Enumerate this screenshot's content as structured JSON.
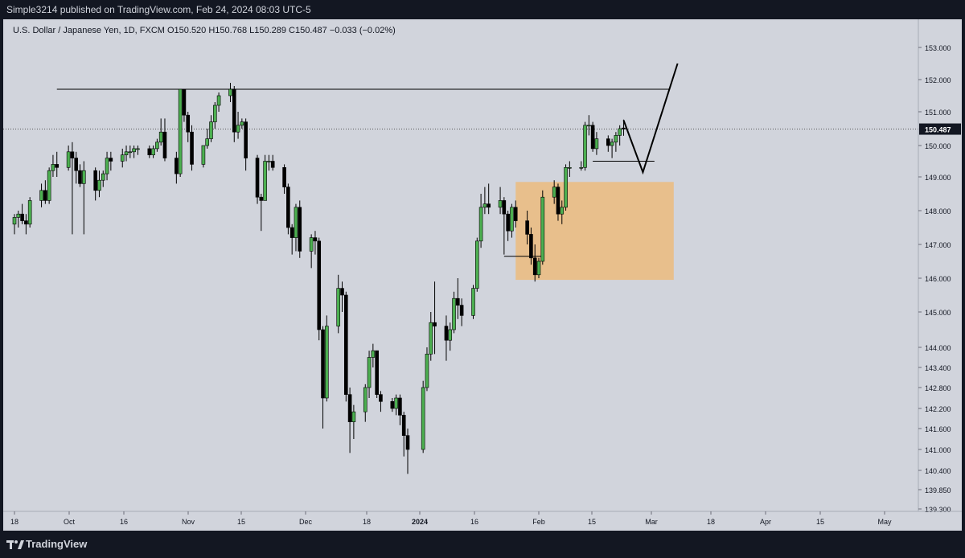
{
  "header": {
    "published_text": "Simple3214 published on TradingView.com, Feb 24, 2024 08:03 UTC-5"
  },
  "legend": {
    "text": "U.S. Dollar / Japanese Yen, 1D, FXCM  O150.520  H150.768  L150.289  C150.487  −0.033 (−0.02%)"
  },
  "footer": {
    "brand": "TradingView"
  },
  "colors": {
    "background": "#d1d4dc",
    "bull": "#4caf50",
    "bear": "#000000",
    "zone": "#e8bf8c",
    "frame": "#131722"
  },
  "chart_data": {
    "type": "candlestick",
    "symbol": "U.S. Dollar / Japanese Yen",
    "interval": "1D",
    "source": "FXCM",
    "ohlc": {
      "open": 150.52,
      "high": 150.768,
      "low": 150.289,
      "close": 150.487,
      "change": -0.033,
      "change_pct": -0.02
    },
    "last_price_label": "150.487",
    "y_ticks": [
      "153.000",
      "152.000",
      "151.000",
      "150.000",
      "149.000",
      "148.000",
      "147.000",
      "146.000",
      "145.000",
      "144.000",
      "143.400",
      "142.800",
      "142.200",
      "141.600",
      "141.000",
      "140.400",
      "139.850",
      "139.300"
    ],
    "x_ticks": [
      "18",
      "Oct",
      "16",
      "Nov",
      "15",
      "Dec",
      "18",
      "2024",
      "16",
      "Feb",
      "15",
      "Mar",
      "18",
      "Apr",
      "15",
      "May"
    ],
    "x_tick_bold": "2024",
    "y_scale": "log",
    "grid": false,
    "resistance_level": 151.7,
    "demand_zone": {
      "low": 145.95,
      "high": 148.85,
      "start_date": "2024-01-26",
      "end_date": "2024-03-07"
    },
    "swing_low_level": 146.65,
    "consolidation_low_level": 149.5,
    "projection_path": [
      {
        "date": "2024-02-23",
        "price": 150.75
      },
      {
        "date": "2024-02-28",
        "price": 149.15
      },
      {
        "date": "2024-03-08",
        "price": 152.5
      }
    ],
    "candles": [
      {
        "date": "2023-09-18",
        "o": 147.6,
        "h": 147.9,
        "l": 147.3,
        "c": 147.8
      },
      {
        "date": "2023-09-19",
        "o": 147.8,
        "h": 148.0,
        "l": 147.5,
        "c": 147.9
      },
      {
        "date": "2023-09-20",
        "o": 147.9,
        "h": 148.2,
        "l": 147.6,
        "c": 147.7
      },
      {
        "date": "2023-09-21",
        "o": 147.7,
        "h": 147.9,
        "l": 147.3,
        "c": 147.6
      },
      {
        "date": "2023-09-22",
        "o": 147.6,
        "h": 148.4,
        "l": 147.5,
        "c": 148.3
      },
      {
        "date": "2023-09-25",
        "o": 148.3,
        "h": 148.8,
        "l": 148.1,
        "c": 148.6
      },
      {
        "date": "2023-09-26",
        "o": 148.6,
        "h": 148.9,
        "l": 148.2,
        "c": 148.3
      },
      {
        "date": "2023-09-27",
        "o": 148.3,
        "h": 149.3,
        "l": 148.2,
        "c": 149.2
      },
      {
        "date": "2023-09-28",
        "o": 149.2,
        "h": 149.7,
        "l": 149.0,
        "c": 149.4
      },
      {
        "date": "2023-09-29",
        "o": 149.4,
        "h": 149.8,
        "l": 149.0,
        "c": 149.3
      },
      {
        "date": "2023-10-02",
        "o": 149.3,
        "h": 150.0,
        "l": 149.2,
        "c": 149.8
      },
      {
        "date": "2023-10-03",
        "o": 149.8,
        "h": 150.1,
        "l": 147.3,
        "c": 149.6
      },
      {
        "date": "2023-10-04",
        "o": 149.6,
        "h": 149.8,
        "l": 148.8,
        "c": 149.2
      },
      {
        "date": "2023-10-05",
        "o": 149.2,
        "h": 149.4,
        "l": 148.7,
        "c": 148.8
      },
      {
        "date": "2023-10-06",
        "o": 148.8,
        "h": 149.5,
        "l": 147.3,
        "c": 149.2
      },
      {
        "date": "2023-10-09",
        "o": 149.2,
        "h": 149.3,
        "l": 148.3,
        "c": 148.6
      },
      {
        "date": "2023-10-10",
        "o": 148.6,
        "h": 149.2,
        "l": 148.4,
        "c": 148.9
      },
      {
        "date": "2023-10-11",
        "o": 148.9,
        "h": 149.2,
        "l": 148.7,
        "c": 149.1
      },
      {
        "date": "2023-10-12",
        "o": 149.1,
        "h": 149.8,
        "l": 148.9,
        "c": 149.6
      },
      {
        "date": "2023-10-13",
        "o": 149.6,
        "h": 149.8,
        "l": 149.2,
        "c": 149.5
      },
      {
        "date": "2023-10-16",
        "o": 149.5,
        "h": 149.9,
        "l": 149.3,
        "c": 149.7
      },
      {
        "date": "2023-10-17",
        "o": 149.7,
        "h": 150.0,
        "l": 149.5,
        "c": 149.8
      },
      {
        "date": "2023-10-18",
        "o": 149.8,
        "h": 150.0,
        "l": 149.6,
        "c": 149.8
      },
      {
        "date": "2023-10-19",
        "o": 149.8,
        "h": 150.0,
        "l": 149.6,
        "c": 149.9
      },
      {
        "date": "2023-10-20",
        "o": 149.9,
        "h": 150.0,
        "l": 149.7,
        "c": 149.9
      },
      {
        "date": "2023-10-23",
        "o": 149.9,
        "h": 150.0,
        "l": 149.6,
        "c": 149.7
      },
      {
        "date": "2023-10-24",
        "o": 149.7,
        "h": 150.0,
        "l": 149.6,
        "c": 149.9
      },
      {
        "date": "2023-10-25",
        "o": 149.9,
        "h": 150.2,
        "l": 149.8,
        "c": 150.1
      },
      {
        "date": "2023-10-26",
        "o": 150.1,
        "h": 150.8,
        "l": 150.0,
        "c": 150.4
      },
      {
        "date": "2023-10-27",
        "o": 150.4,
        "h": 150.8,
        "l": 149.5,
        "c": 149.6
      },
      {
        "date": "2023-10-30",
        "o": 149.6,
        "h": 149.8,
        "l": 148.8,
        "c": 149.1
      },
      {
        "date": "2023-10-31",
        "o": 149.1,
        "h": 151.7,
        "l": 149.0,
        "c": 151.7
      },
      {
        "date": "2023-11-01",
        "o": 151.7,
        "h": 151.7,
        "l": 150.7,
        "c": 150.9
      },
      {
        "date": "2023-11-02",
        "o": 150.9,
        "h": 151.0,
        "l": 150.1,
        "c": 150.4
      },
      {
        "date": "2023-11-03",
        "o": 150.4,
        "h": 150.6,
        "l": 149.2,
        "c": 149.4
      },
      {
        "date": "2023-11-06",
        "o": 149.4,
        "h": 150.0,
        "l": 149.3,
        "c": 150.0
      },
      {
        "date": "2023-11-07",
        "o": 150.0,
        "h": 150.5,
        "l": 149.9,
        "c": 150.2
      },
      {
        "date": "2023-11-08",
        "o": 150.2,
        "h": 150.9,
        "l": 150.1,
        "c": 150.7
      },
      {
        "date": "2023-11-09",
        "o": 150.7,
        "h": 151.3,
        "l": 150.5,
        "c": 151.2
      },
      {
        "date": "2023-11-10",
        "o": 151.2,
        "h": 151.6,
        "l": 151.0,
        "c": 151.5
      },
      {
        "date": "2023-11-13",
        "o": 151.5,
        "h": 151.9,
        "l": 151.3,
        "c": 151.7
      },
      {
        "date": "2023-11-14",
        "o": 151.7,
        "h": 151.8,
        "l": 150.1,
        "c": 150.4
      },
      {
        "date": "2023-11-15",
        "o": 150.4,
        "h": 151.0,
        "l": 150.2,
        "c": 150.6
      },
      {
        "date": "2023-11-16",
        "o": 150.6,
        "h": 150.8,
        "l": 150.5,
        "c": 150.7
      },
      {
        "date": "2023-11-17",
        "o": 150.7,
        "h": 150.8,
        "l": 149.2,
        "c": 149.6
      },
      {
        "date": "2023-11-20",
        "o": 149.6,
        "h": 149.7,
        "l": 148.2,
        "c": 148.4
      },
      {
        "date": "2023-11-21",
        "o": 148.4,
        "h": 148.5,
        "l": 147.4,
        "c": 148.3
      },
      {
        "date": "2023-11-22",
        "o": 148.3,
        "h": 149.7,
        "l": 148.3,
        "c": 149.5
      },
      {
        "date": "2023-11-23",
        "o": 149.5,
        "h": 149.7,
        "l": 149.2,
        "c": 149.5
      },
      {
        "date": "2023-11-24",
        "o": 149.5,
        "h": 149.7,
        "l": 149.2,
        "c": 149.3
      },
      {
        "date": "2023-11-27",
        "o": 149.3,
        "h": 149.4,
        "l": 148.5,
        "c": 148.7
      },
      {
        "date": "2023-11-28",
        "o": 148.7,
        "h": 148.8,
        "l": 147.3,
        "c": 147.5
      },
      {
        "date": "2023-11-29",
        "o": 147.5,
        "h": 147.6,
        "l": 146.7,
        "c": 147.2
      },
      {
        "date": "2023-11-30",
        "o": 147.2,
        "h": 148.2,
        "l": 146.8,
        "c": 148.1
      },
      {
        "date": "2023-12-01",
        "o": 148.1,
        "h": 148.3,
        "l": 146.6,
        "c": 146.8
      },
      {
        "date": "2023-12-04",
        "o": 146.8,
        "h": 147.3,
        "l": 146.3,
        "c": 147.2
      },
      {
        "date": "2023-12-05",
        "o": 147.2,
        "h": 147.4,
        "l": 146.7,
        "c": 147.1
      },
      {
        "date": "2023-12-06",
        "o": 147.1,
        "h": 147.2,
        "l": 144.2,
        "c": 144.5
      },
      {
        "date": "2023-12-07",
        "o": 144.5,
        "h": 144.6,
        "l": 141.6,
        "c": 142.5
      },
      {
        "date": "2023-12-08",
        "o": 142.5,
        "h": 144.9,
        "l": 142.4,
        "c": 144.6
      },
      {
        "date": "2023-12-11",
        "o": 144.6,
        "h": 146.1,
        "l": 144.4,
        "c": 145.7
      },
      {
        "date": "2023-12-12",
        "o": 145.7,
        "h": 145.9,
        "l": 145.0,
        "c": 145.5
      },
      {
        "date": "2023-12-13",
        "o": 145.5,
        "h": 145.6,
        "l": 142.4,
        "c": 142.6
      },
      {
        "date": "2023-12-14",
        "o": 142.6,
        "h": 142.8,
        "l": 140.9,
        "c": 141.8
      },
      {
        "date": "2023-12-15",
        "o": 141.8,
        "h": 142.3,
        "l": 141.3,
        "c": 142.1
      },
      {
        "date": "2023-12-18",
        "o": 142.1,
        "h": 142.9,
        "l": 141.8,
        "c": 142.8
      },
      {
        "date": "2023-12-19",
        "o": 142.8,
        "h": 143.9,
        "l": 142.5,
        "c": 143.7
      },
      {
        "date": "2023-12-20",
        "o": 143.7,
        "h": 144.1,
        "l": 143.4,
        "c": 143.9
      },
      {
        "date": "2023-12-21",
        "o": 143.9,
        "h": 143.9,
        "l": 142.5,
        "c": 142.6
      },
      {
        "date": "2023-12-22",
        "o": 142.6,
        "h": 142.7,
        "l": 142.1,
        "c": 142.4
      },
      {
        "date": "2023-12-25",
        "o": 142.4,
        "h": 142.5,
        "l": 142.1,
        "c": 142.2
      },
      {
        "date": "2023-12-26",
        "o": 142.2,
        "h": 142.6,
        "l": 142.0,
        "c": 142.5
      },
      {
        "date": "2023-12-27",
        "o": 142.5,
        "h": 142.6,
        "l": 141.7,
        "c": 142.0
      },
      {
        "date": "2023-12-28",
        "o": 142.0,
        "h": 142.1,
        "l": 140.8,
        "c": 141.4
      },
      {
        "date": "2023-12-29",
        "o": 141.4,
        "h": 141.6,
        "l": 140.3,
        "c": 141.0
      },
      {
        "date": "2024-01-02",
        "o": 141.0,
        "h": 143.0,
        "l": 140.9,
        "c": 142.8
      },
      {
        "date": "2024-01-03",
        "o": 142.8,
        "h": 144.0,
        "l": 142.7,
        "c": 143.8
      },
      {
        "date": "2024-01-04",
        "o": 143.8,
        "h": 145.0,
        "l": 143.6,
        "c": 144.7
      },
      {
        "date": "2024-01-05",
        "o": 144.7,
        "h": 145.9,
        "l": 143.8,
        "c": 144.6
      },
      {
        "date": "2024-01-08",
        "o": 144.6,
        "h": 144.9,
        "l": 143.6,
        "c": 144.2
      },
      {
        "date": "2024-01-09",
        "o": 144.2,
        "h": 144.7,
        "l": 143.9,
        "c": 144.5
      },
      {
        "date": "2024-01-10",
        "o": 144.5,
        "h": 145.6,
        "l": 144.4,
        "c": 145.4
      },
      {
        "date": "2024-01-11",
        "o": 145.4,
        "h": 146.0,
        "l": 144.8,
        "c": 145.2
      },
      {
        "date": "2024-01-12",
        "o": 145.2,
        "h": 145.4,
        "l": 144.6,
        "c": 144.9
      },
      {
        "date": "2024-01-15",
        "o": 144.9,
        "h": 145.8,
        "l": 144.8,
        "c": 145.7
      },
      {
        "date": "2024-01-16",
        "o": 145.7,
        "h": 147.2,
        "l": 145.6,
        "c": 147.1
      },
      {
        "date": "2024-01-17",
        "o": 147.1,
        "h": 148.5,
        "l": 146.9,
        "c": 148.1
      },
      {
        "date": "2024-01-18",
        "o": 148.1,
        "h": 148.7,
        "l": 147.9,
        "c": 148.2
      },
      {
        "date": "2024-01-19",
        "o": 148.2,
        "h": 148.8,
        "l": 147.9,
        "c": 148.1
      },
      {
        "date": "2024-01-22",
        "o": 148.1,
        "h": 148.7,
        "l": 147.9,
        "c": 148.3
      },
      {
        "date": "2024-01-23",
        "o": 148.3,
        "h": 148.4,
        "l": 146.7,
        "c": 147.9
      },
      {
        "date": "2024-01-24",
        "o": 147.9,
        "h": 148.0,
        "l": 147.1,
        "c": 147.4
      },
      {
        "date": "2024-01-25",
        "o": 147.4,
        "h": 148.2,
        "l": 147.2,
        "c": 148.1
      },
      {
        "date": "2024-01-26",
        "o": 148.1,
        "h": 148.3,
        "l": 147.5,
        "c": 147.7
      },
      {
        "date": "2024-01-29",
        "o": 147.7,
        "h": 148.0,
        "l": 147.0,
        "c": 147.3
      },
      {
        "date": "2024-01-30",
        "o": 147.3,
        "h": 147.5,
        "l": 146.4,
        "c": 146.6
      },
      {
        "date": "2024-01-31",
        "o": 146.6,
        "h": 147.0,
        "l": 145.9,
        "c": 146.1
      },
      {
        "date": "2024-02-01",
        "o": 146.1,
        "h": 146.6,
        "l": 146.0,
        "c": 146.5
      },
      {
        "date": "2024-02-02",
        "o": 146.5,
        "h": 148.6,
        "l": 146.4,
        "c": 148.4
      },
      {
        "date": "2024-02-05",
        "o": 148.4,
        "h": 148.9,
        "l": 148.2,
        "c": 148.7
      },
      {
        "date": "2024-02-06",
        "o": 148.7,
        "h": 148.8,
        "l": 147.7,
        "c": 147.9
      },
      {
        "date": "2024-02-07",
        "o": 147.9,
        "h": 148.3,
        "l": 147.6,
        "c": 148.1
      },
      {
        "date": "2024-02-08",
        "o": 148.1,
        "h": 149.4,
        "l": 148.0,
        "c": 149.3
      },
      {
        "date": "2024-02-09",
        "o": 149.3,
        "h": 149.5,
        "l": 149.0,
        "c": 149.3
      },
      {
        "date": "2024-02-12",
        "o": 149.3,
        "h": 149.5,
        "l": 149.2,
        "c": 149.3
      },
      {
        "date": "2024-02-13",
        "o": 149.3,
        "h": 150.7,
        "l": 149.2,
        "c": 150.6
      },
      {
        "date": "2024-02-14",
        "o": 150.6,
        "h": 150.9,
        "l": 150.3,
        "c": 150.6
      },
      {
        "date": "2024-02-15",
        "o": 150.6,
        "h": 150.7,
        "l": 149.8,
        "c": 149.9
      },
      {
        "date": "2024-02-16",
        "o": 149.9,
        "h": 150.4,
        "l": 149.7,
        "c": 150.2
      },
      {
        "date": "2024-02-19",
        "o": 150.2,
        "h": 150.3,
        "l": 149.8,
        "c": 150.0
      },
      {
        "date": "2024-02-20",
        "o": 150.0,
        "h": 150.2,
        "l": 149.6,
        "c": 150.1
      },
      {
        "date": "2024-02-21",
        "o": 150.1,
        "h": 150.4,
        "l": 149.8,
        "c": 150.3
      },
      {
        "date": "2024-02-22",
        "o": 150.3,
        "h": 150.6,
        "l": 150.0,
        "c": 150.5
      },
      {
        "date": "2024-02-23",
        "o": 150.52,
        "h": 150.768,
        "l": 150.289,
        "c": 150.487
      }
    ]
  }
}
